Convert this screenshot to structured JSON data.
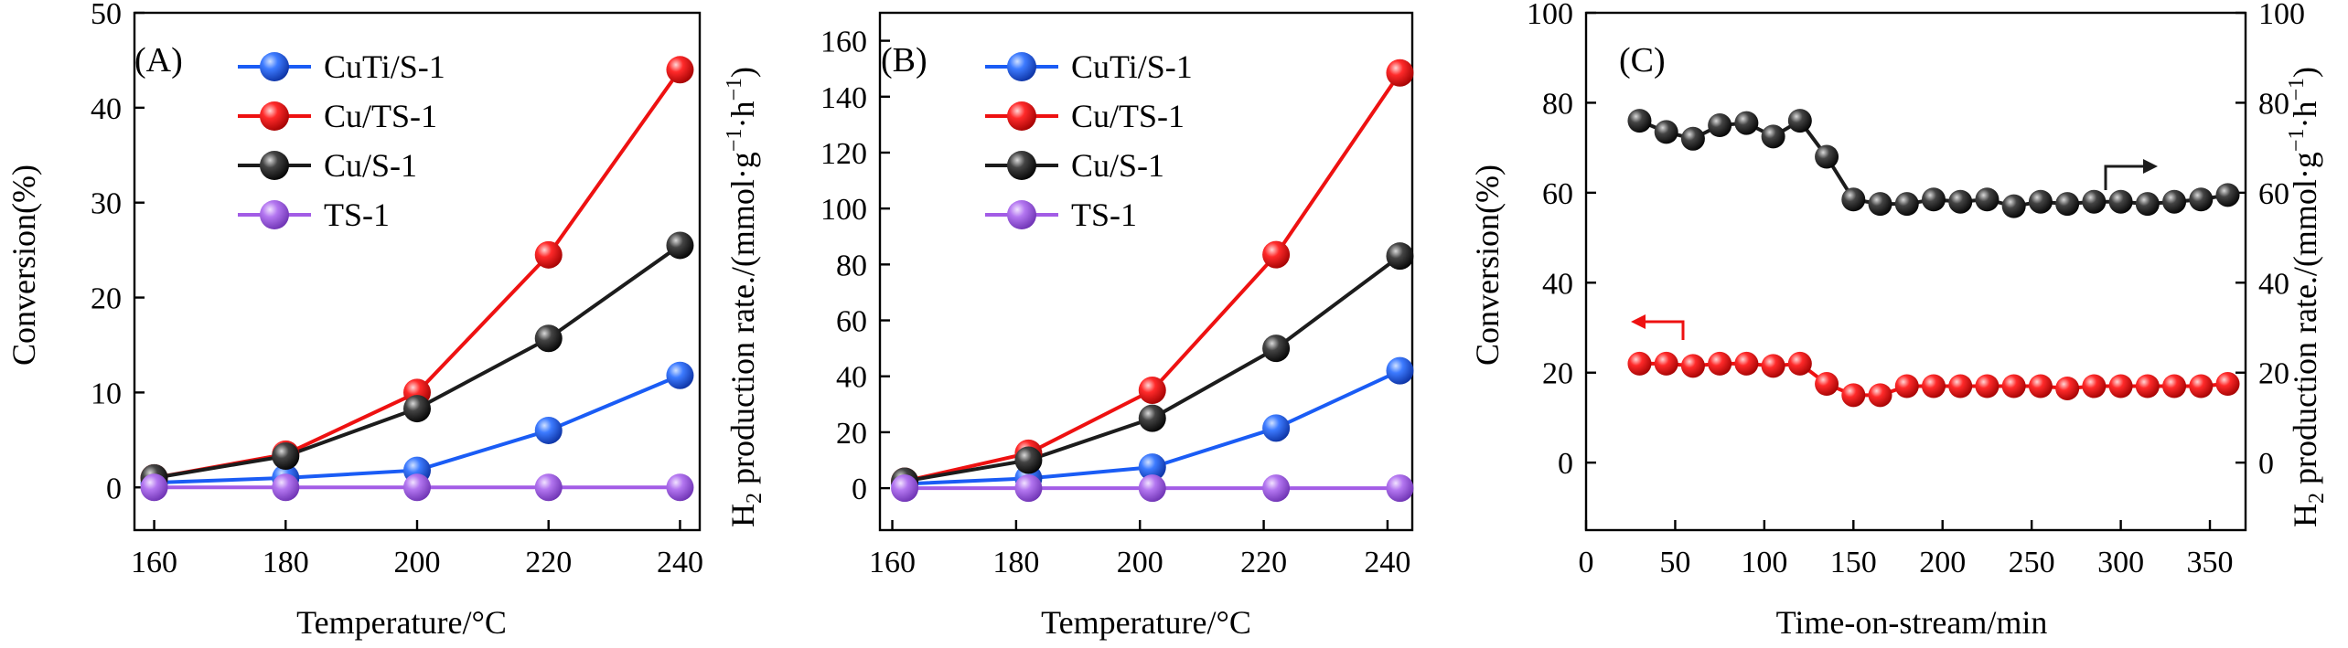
{
  "colors": {
    "blue": "#1a5cf5",
    "red": "#ee1111",
    "black": "#1c1c1c",
    "purple": "#a35ce6",
    "text": "#000000"
  },
  "chart_data": [
    {
      "type": "line",
      "panel_label": "(A)",
      "xlabel": "Temperature/°C",
      "ylabel": "Conversion(%)",
      "xlim": [
        157,
        243
      ],
      "ylim": [
        -4.5,
        50
      ],
      "x_ticks": [
        160,
        180,
        200,
        220,
        240
      ],
      "y_ticks": [
        0,
        10,
        20,
        30,
        40,
        50
      ],
      "legend_position": "top-center",
      "series": [
        {
          "name": "CuTi/S-1",
          "color_key": "blue",
          "x": [
            160,
            180,
            200,
            220,
            240
          ],
          "values": [
            0.5,
            1.0,
            1.8,
            6.0,
            11.8
          ]
        },
        {
          "name": "Cu/TS-1",
          "color_key": "red",
          "x": [
            160,
            180,
            200,
            220,
            240
          ],
          "values": [
            1.0,
            3.5,
            10.0,
            24.5,
            44.0
          ]
        },
        {
          "name": "Cu/S-1",
          "color_key": "black",
          "x": [
            160,
            180,
            200,
            220,
            240
          ],
          "values": [
            1.0,
            3.3,
            8.3,
            15.7,
            25.5
          ]
        },
        {
          "name": "TS-1",
          "color_key": "purple",
          "x": [
            160,
            180,
            200,
            220,
            240
          ],
          "values": [
            0,
            0,
            0,
            0,
            0
          ]
        }
      ]
    },
    {
      "type": "line",
      "panel_label": "(B)",
      "xlabel": "Temperature/°C",
      "ylabel_main": "H",
      "ylabel_sub": "2",
      "ylabel_rest": " production rate./(mmol·g",
      "ylabel_sup1": "−1",
      "ylabel_mid": "·h",
      "ylabel_sup2": "−1",
      "ylabel_end": ")",
      "xlim": [
        158,
        244
      ],
      "ylim": [
        -15,
        170
      ],
      "x_ticks": [
        160,
        180,
        200,
        220,
        240
      ],
      "y_ticks": [
        0,
        20,
        40,
        60,
        80,
        100,
        120,
        140,
        160
      ],
      "legend_position": "top-center",
      "series": [
        {
          "name": "CuTi/S-1",
          "color_key": "blue",
          "x": [
            162,
            182,
            202,
            222,
            242
          ],
          "values": [
            1.5,
            3.5,
            7.5,
            21.5,
            42.0
          ]
        },
        {
          "name": "Cu/TS-1",
          "color_key": "red",
          "x": [
            162,
            182,
            202,
            222,
            242
          ],
          "values": [
            2.5,
            12.5,
            35.0,
            83.5,
            148.5
          ]
        },
        {
          "name": "Cu/S-1",
          "color_key": "black",
          "x": [
            162,
            182,
            202,
            222,
            242
          ],
          "values": [
            2.5,
            10.0,
            25.0,
            50.0,
            83.0
          ]
        },
        {
          "name": "TS-1",
          "color_key": "purple",
          "x": [
            162,
            182,
            202,
            222,
            242
          ],
          "values": [
            0,
            0,
            0,
            0,
            0
          ]
        }
      ]
    },
    {
      "type": "scatter",
      "panel_label": "(C)",
      "xlabel": "Time-on-stream/min",
      "ylabel": "Conversion(%)",
      "y2label_main": "H",
      "y2label_sub": "2",
      "y2label_rest": " production rate./(mmol·g",
      "y2label_sup1": "−1",
      "y2label_mid": "·h",
      "y2label_sup2": "−1",
      "y2label_end": ")",
      "xlim": [
        0,
        370
      ],
      "ylim": [
        -15,
        100
      ],
      "y2lim": [
        -15,
        100
      ],
      "x_ticks": [
        0,
        50,
        100,
        150,
        200,
        250,
        300,
        350
      ],
      "y_ticks": [
        0,
        20,
        40,
        60,
        80,
        100
      ],
      "y2_ticks": [
        0,
        20,
        40,
        60,
        80,
        100
      ],
      "annotations": [
        "arrow pointing left to conversion axis near red series",
        "arrow pointing right to H2 rate axis near black series"
      ],
      "series": [
        {
          "name": "Conversion",
          "color_key": "red",
          "axis": "left",
          "x": [
            30,
            45,
            60,
            75,
            90,
            105,
            120,
            135,
            150,
            165,
            180,
            195,
            210,
            225,
            240,
            255,
            270,
            285,
            300,
            315,
            330,
            345,
            360
          ],
          "values": [
            22,
            22,
            21.5,
            22,
            22,
            21.5,
            22,
            17.5,
            15,
            15,
            17,
            17,
            17,
            17,
            17,
            17,
            16.5,
            17,
            17,
            17,
            17,
            17,
            17.5
          ]
        },
        {
          "name": "H2 production rate",
          "color_key": "black",
          "axis": "right",
          "x": [
            30,
            45,
            60,
            75,
            90,
            105,
            120,
            135,
            150,
            165,
            180,
            195,
            210,
            225,
            240,
            255,
            270,
            285,
            300,
            315,
            330,
            345,
            360
          ],
          "values": [
            76,
            73.5,
            72,
            75,
            75.5,
            72.5,
            76,
            68,
            58.5,
            57.5,
            57.5,
            58.5,
            58,
            58.5,
            57,
            58,
            57.5,
            58,
            58,
            57.5,
            58,
            58.5,
            59.5
          ]
        }
      ]
    }
  ]
}
